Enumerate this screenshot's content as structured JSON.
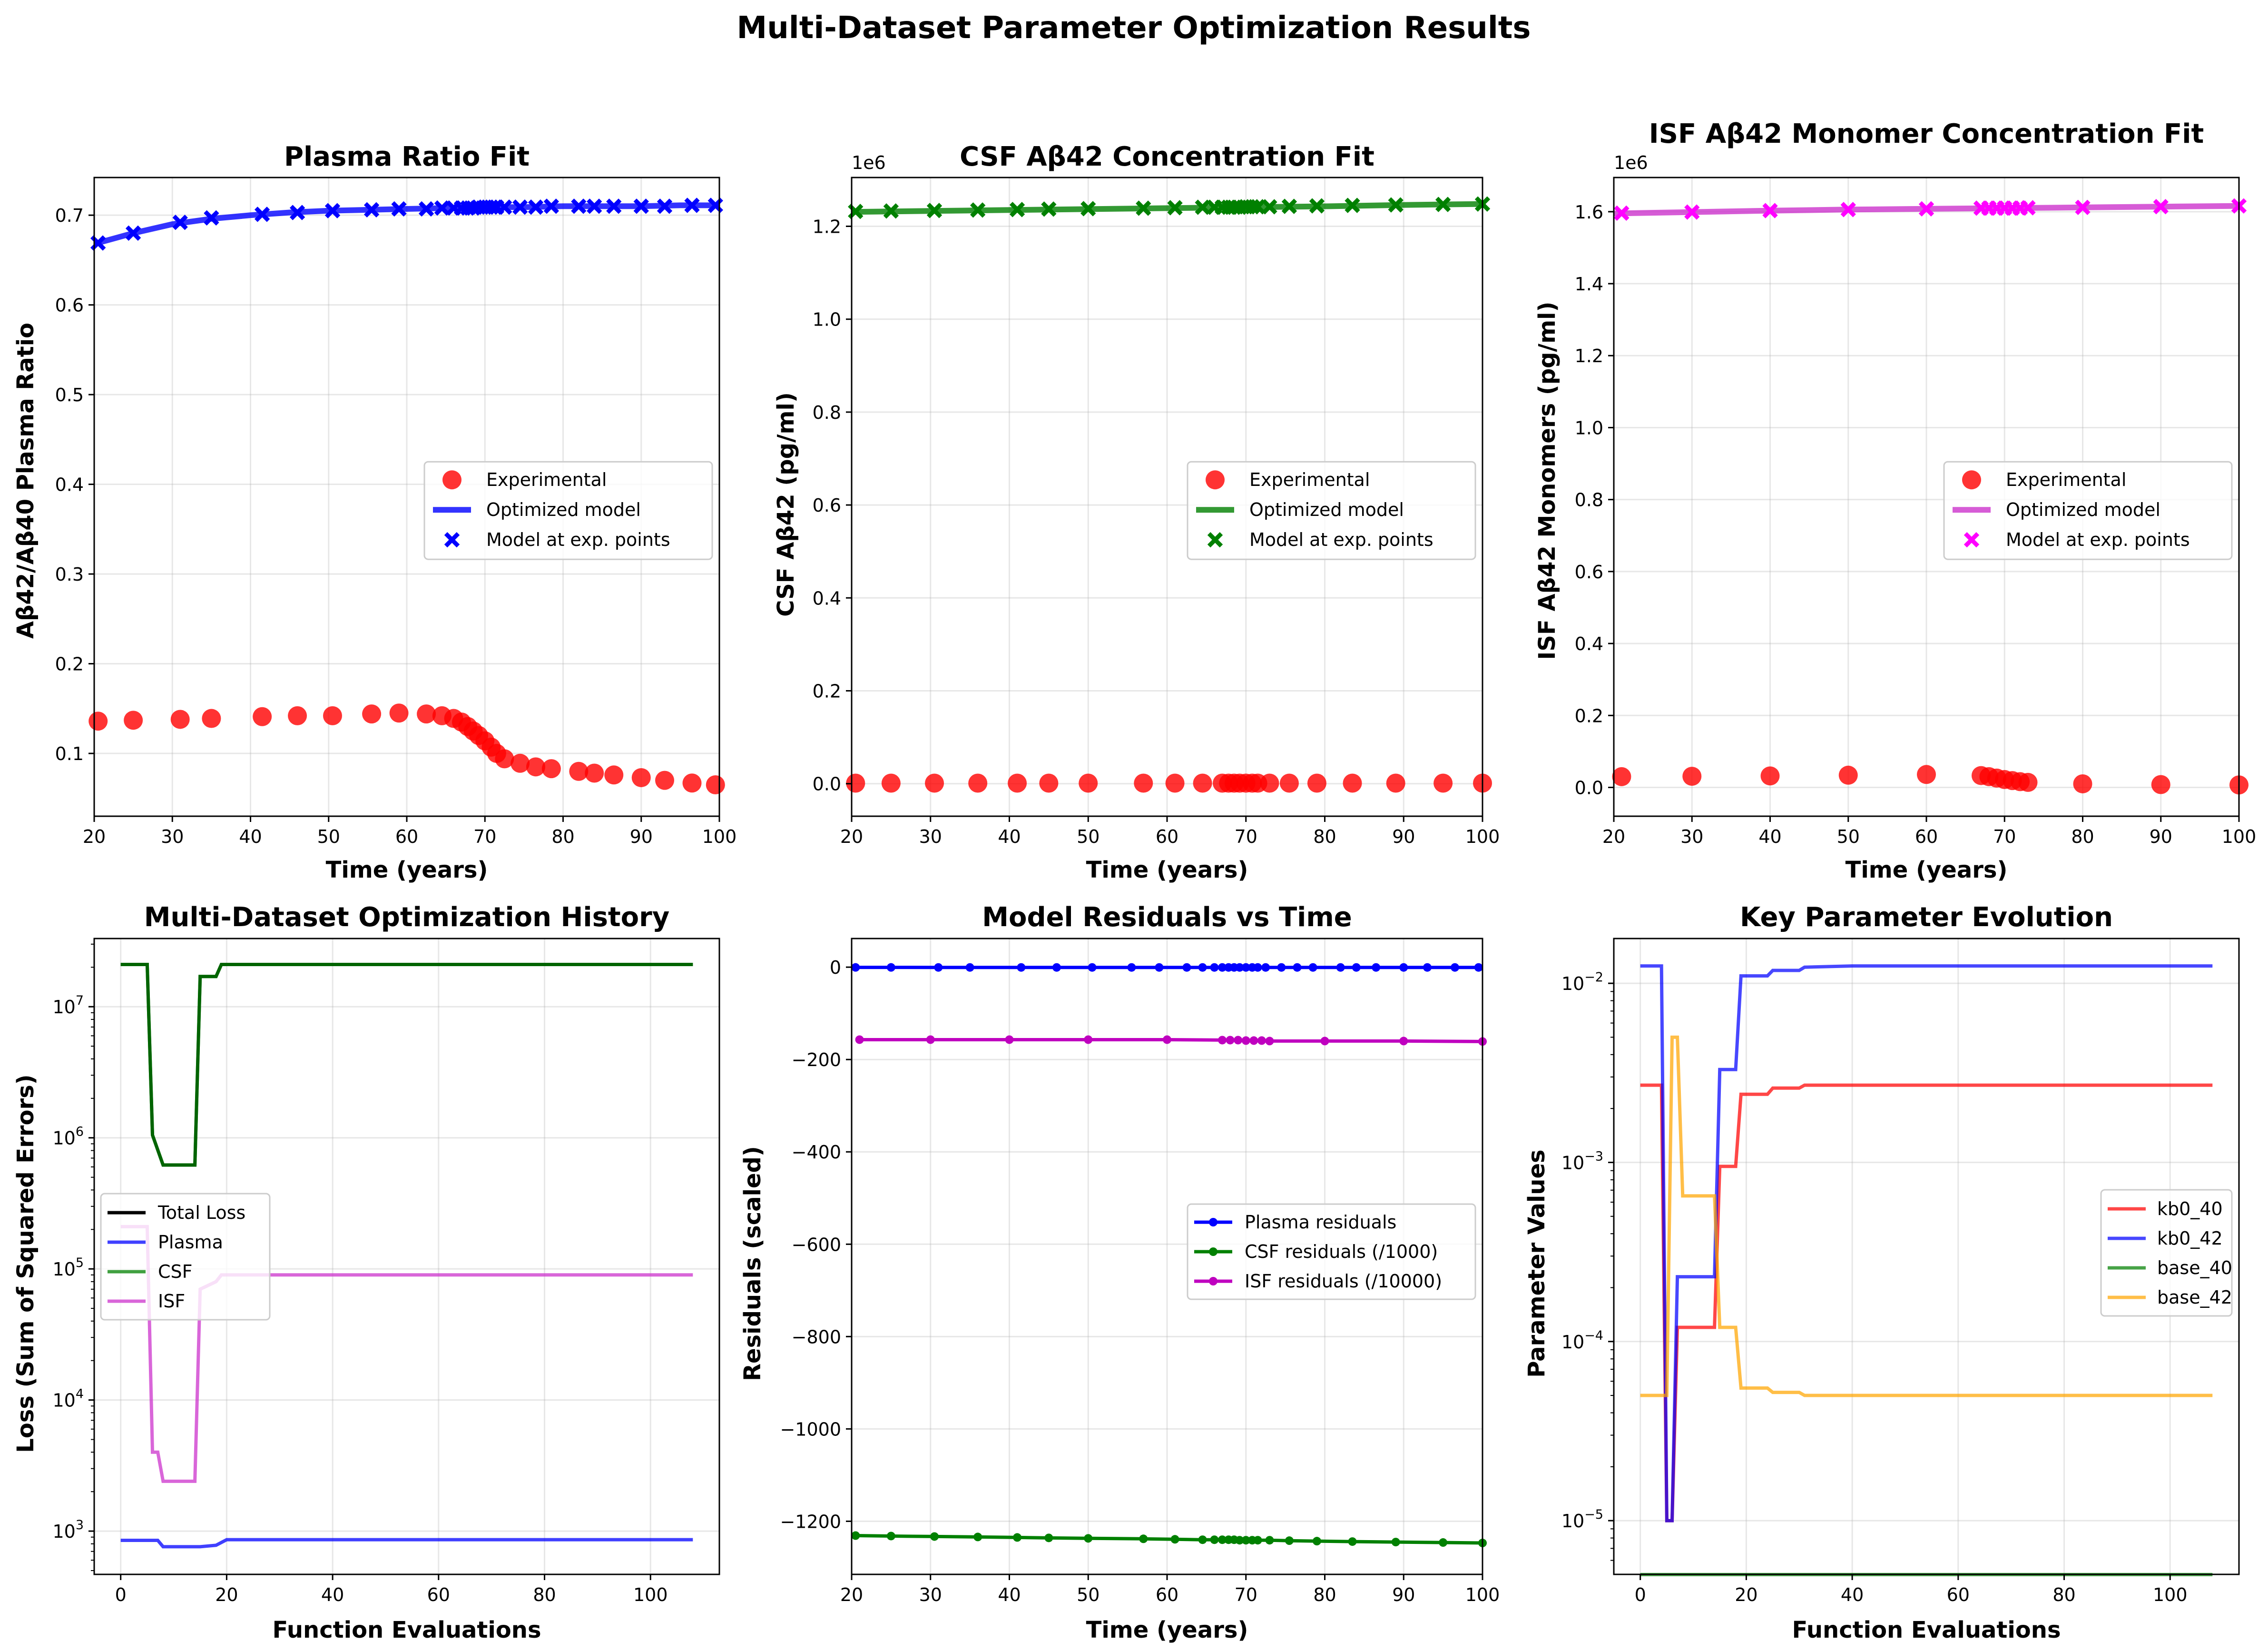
{
  "figure": {
    "title": "Multi-Dataset Parameter Optimization Results"
  },
  "colors": {
    "experimental": "#ff0000",
    "plasma": "#0000ff",
    "csf": "#008000",
    "isf": "#ff00ff",
    "isf_line": "#cc33cc",
    "total": "#000000",
    "total_overlay": "#006400",
    "isf_residual": "#bf00bf",
    "kb0_40": "#ff0000",
    "kb0_42": "#0000ff",
    "base_40": "#008000",
    "base_42": "#ffa500"
  },
  "chart_data": [
    {
      "id": "plasma",
      "type": "scatter",
      "title": "Plasma Ratio Fit",
      "xlabel": "Time (years)",
      "ylabel": "Aβ42/Aβ40 Plasma Ratio",
      "xlim": [
        20,
        100
      ],
      "ylim": [
        0.03,
        0.742
      ],
      "xticks": [
        20,
        30,
        40,
        50,
        60,
        70,
        80,
        90,
        100
      ],
      "yticks": [
        0.1,
        0.2,
        0.3,
        0.4,
        0.5,
        0.6,
        0.7
      ],
      "ytick_labels": [
        "0.1",
        "0.2",
        "0.3",
        "0.4",
        "0.5",
        "0.6",
        "0.7"
      ],
      "offset_text": "",
      "grid": true,
      "legend_position": "center-right",
      "legend": [
        "Experimental",
        "Optimized model",
        "Model at exp. points"
      ],
      "experimental": {
        "x": [
          20.5,
          25,
          31,
          35,
          41.5,
          46,
          50.5,
          55.5,
          59,
          62.5,
          64.5,
          66,
          67,
          67.8,
          68.5,
          69.2,
          70,
          70.8,
          71.5,
          72.5,
          74.5,
          76.5,
          78.5,
          82,
          84,
          86.5,
          90,
          93,
          96.5,
          99.5
        ],
        "y": [
          0.136,
          0.137,
          0.138,
          0.139,
          0.141,
          0.142,
          0.142,
          0.144,
          0.145,
          0.144,
          0.142,
          0.139,
          0.135,
          0.13,
          0.125,
          0.12,
          0.114,
          0.107,
          0.1,
          0.094,
          0.089,
          0.085,
          0.083,
          0.08,
          0.078,
          0.076,
          0.073,
          0.07,
          0.067,
          0.065
        ]
      },
      "model": {
        "x": [
          20,
          25,
          30,
          35,
          40,
          45,
          50,
          55,
          60,
          65,
          70,
          75,
          80,
          85,
          90,
          95,
          100
        ],
        "y": [
          0.668,
          0.68,
          0.69,
          0.696,
          0.7,
          0.703,
          0.705,
          0.706,
          0.707,
          0.708,
          0.709,
          0.709,
          0.71,
          0.71,
          0.71,
          0.711,
          0.711
        ]
      },
      "model_points": {
        "x": [
          20.5,
          25,
          31,
          35,
          41.5,
          46,
          50.5,
          55.5,
          59,
          62.5,
          64.5,
          66,
          67,
          67.8,
          68.5,
          69.2,
          70,
          70.8,
          71.5,
          72.5,
          74.5,
          76.5,
          78.5,
          82,
          84,
          86.5,
          90,
          93,
          96.5,
          99.5
        ],
        "y": [
          0.669,
          0.68,
          0.692,
          0.697,
          0.701,
          0.703,
          0.705,
          0.706,
          0.707,
          0.707,
          0.708,
          0.708,
          0.708,
          0.708,
          0.708,
          0.709,
          0.709,
          0.709,
          0.709,
          0.709,
          0.709,
          0.709,
          0.71,
          0.71,
          0.71,
          0.71,
          0.71,
          0.71,
          0.711,
          0.711
        ]
      }
    },
    {
      "id": "csf",
      "type": "scatter",
      "title": "CSF Aβ42 Concentration Fit",
      "xlabel": "Time (years)",
      "ylabel": "CSF Aβ42 (pg/ml)",
      "xlim": [
        20,
        100
      ],
      "ylim": [
        -0.07,
        1.305
      ],
      "xticks": [
        20,
        30,
        40,
        50,
        60,
        70,
        80,
        90,
        100
      ],
      "yticks": [
        0,
        0.2,
        0.4,
        0.6,
        0.8,
        1.0,
        1.2
      ],
      "ytick_labels": [
        "0.0",
        "0.2",
        "0.4",
        "0.6",
        "0.8",
        "1.0",
        "1.2"
      ],
      "offset_text": "1e6",
      "grid": true,
      "legend_position": "center-right",
      "legend": [
        "Experimental",
        "Optimized model",
        "Model at exp. points"
      ],
      "experimental": {
        "x": [
          20.5,
          25,
          30.5,
          36,
          41,
          45,
          50,
          57,
          61,
          64.5,
          67,
          67.8,
          68.5,
          69.2,
          70,
          70.8,
          71.5,
          73,
          75.5,
          79,
          83.5,
          89,
          95,
          100
        ],
        "y": [
          0.0012,
          0.0012,
          0.0012,
          0.0012,
          0.0012,
          0.0012,
          0.0012,
          0.0012,
          0.0012,
          0.0012,
          0.0012,
          0.0012,
          0.0012,
          0.0012,
          0.0012,
          0.0012,
          0.0012,
          0.0012,
          0.0012,
          0.0012,
          0.0012,
          0.0012,
          0.0012,
          0.0012
        ]
      },
      "model": {
        "x": [
          20,
          30,
          40,
          50,
          60,
          70,
          80,
          90,
          100
        ],
        "y": [
          1.231,
          1.233,
          1.235,
          1.237,
          1.239,
          1.241,
          1.243,
          1.246,
          1.248
        ]
      },
      "model_points": {
        "x": [
          20.5,
          25,
          30.5,
          36,
          41,
          45,
          50,
          57,
          61,
          64.5,
          66,
          67,
          67.8,
          68.5,
          69.2,
          70,
          70.8,
          71.5,
          73,
          75.5,
          79,
          83.5,
          89,
          95,
          100
        ],
        "y": [
          1.232,
          1.233,
          1.234,
          1.235,
          1.236,
          1.237,
          1.238,
          1.239,
          1.24,
          1.241,
          1.241,
          1.241,
          1.241,
          1.241,
          1.241,
          1.242,
          1.242,
          1.242,
          1.242,
          1.243,
          1.244,
          1.245,
          1.246,
          1.247,
          1.248
        ]
      }
    },
    {
      "id": "isf",
      "type": "scatter",
      "title": "ISF Aβ42 Monomer Concentration Fit",
      "xlabel": "Time (years)",
      "ylabel": "ISF Aβ42 Monomers (pg/ml)",
      "xlim": [
        20,
        100
      ],
      "ylim": [
        -0.08,
        1.695
      ],
      "xticks": [
        20,
        30,
        40,
        50,
        60,
        70,
        80,
        90,
        100
      ],
      "yticks": [
        0,
        0.2,
        0.4,
        0.6,
        0.8,
        1.0,
        1.2,
        1.4,
        1.6
      ],
      "ytick_labels": [
        "0.0",
        "0.2",
        "0.4",
        "0.6",
        "0.8",
        "1.0",
        "1.2",
        "1.4",
        "1.6"
      ],
      "offset_text": "1e6",
      "grid": true,
      "legend_position": "center-right",
      "legend": [
        "Experimental",
        "Optimized model",
        "Model at exp. points"
      ],
      "experimental": {
        "x": [
          21,
          30,
          40,
          50,
          60,
          67,
          68,
          69,
          70,
          71,
          72,
          73,
          80,
          90,
          100
        ],
        "y": [
          0.03,
          0.031,
          0.032,
          0.034,
          0.036,
          0.033,
          0.03,
          0.026,
          0.022,
          0.019,
          0.016,
          0.014,
          0.01,
          0.008,
          0.007
        ]
      },
      "model": {
        "x": [
          20,
          30,
          40,
          50,
          60,
          70,
          80,
          90,
          100
        ],
        "y": [
          1.595,
          1.599,
          1.603,
          1.606,
          1.608,
          1.61,
          1.612,
          1.614,
          1.616
        ]
      },
      "model_points": {
        "x": [
          21,
          30,
          40,
          50,
          60,
          67,
          68,
          69,
          70,
          71,
          72,
          73,
          80,
          90,
          100
        ],
        "y": [
          1.596,
          1.599,
          1.603,
          1.606,
          1.608,
          1.61,
          1.61,
          1.61,
          1.61,
          1.61,
          1.61,
          1.611,
          1.612,
          1.614,
          1.616
        ]
      }
    },
    {
      "id": "history",
      "type": "line",
      "title": "Multi-Dataset Optimization History",
      "xlabel": "Function Evaluations",
      "ylabel": "Loss (Sum of Squared Errors)",
      "yscale": "log",
      "xlim": [
        -5,
        113
      ],
      "ylim_log10": [
        2.67,
        7.52
      ],
      "xticks": [
        0,
        20,
        40,
        60,
        80,
        100
      ],
      "ytick_exponents": [
        3,
        4,
        5,
        6,
        7
      ],
      "grid": true,
      "legend_position": "center-left",
      "legend": [
        "Total Loss",
        "Plasma",
        "CSF",
        "ISF"
      ],
      "series": [
        {
          "name": "Plasma",
          "color_key": "plasma",
          "x": [
            0,
            7,
            8,
            15,
            18,
            20,
            108
          ],
          "y": [
            850,
            850,
            760,
            760,
            780,
            860,
            860
          ]
        },
        {
          "name": "ISF",
          "color_key": "isf_line",
          "x": [
            0,
            5,
            6,
            7,
            8,
            14,
            15,
            18,
            19,
            108
          ],
          "y": [
            210000,
            210000,
            4000,
            4000,
            2400,
            2400,
            70000,
            80000,
            90000,
            90000
          ]
        },
        {
          "name": "CSF",
          "color_key": "csf",
          "x": [
            0,
            5,
            6,
            8,
            14,
            15,
            18,
            19,
            30,
            108
          ],
          "y": [
            21000000,
            21000000,
            1050000,
            620000,
            620000,
            17000000,
            17000000,
            21000000,
            21000000,
            21000000
          ]
        },
        {
          "name": "Total Loss",
          "color_key": "total_overlay",
          "x": [
            0,
            5,
            6,
            8,
            14,
            15,
            18,
            19,
            30,
            108
          ],
          "y": [
            21000000,
            21000000,
            1050000,
            620000,
            620000,
            17000000,
            17000000,
            21000000,
            21000000,
            21000000
          ]
        }
      ]
    },
    {
      "id": "residuals",
      "type": "line",
      "title": "Model Residuals vs Time",
      "xlabel": "Time (years)",
      "ylabel": "Residuals (scaled)",
      "xlim": [
        20,
        100
      ],
      "ylim": [
        -1315,
        62
      ],
      "xticks": [
        20,
        30,
        40,
        50,
        60,
        70,
        80,
        90,
        100
      ],
      "yticks": [
        0,
        -200,
        -400,
        -600,
        -800,
        -1000,
        -1200
      ],
      "ytick_labels": [
        "0",
        "−200",
        "−400",
        "−600",
        "−800",
        "−1000",
        "−1200"
      ],
      "grid": true,
      "legend_position": "center-right",
      "legend": [
        "Plasma residuals",
        "CSF residuals (/1000)",
        "ISF residuals (/10000)"
      ],
      "series": [
        {
          "name": "Plasma residuals",
          "color_key": "plasma",
          "x": [
            20.5,
            25,
            31,
            35,
            41.5,
            46,
            50.5,
            55.5,
            59,
            62.5,
            64.5,
            66,
            67,
            67.8,
            68.5,
            69.2,
            70,
            70.8,
            71.5,
            72.5,
            74.5,
            76.5,
            78.5,
            82,
            84,
            86.5,
            90,
            93,
            96.5,
            99.5
          ],
          "y": [
            -0.5,
            -0.5,
            -0.6,
            -0.6,
            -0.6,
            -0.6,
            -0.6,
            -0.6,
            -0.6,
            -0.6,
            -0.6,
            -0.6,
            -0.6,
            -0.6,
            -0.6,
            -0.6,
            -0.6,
            -0.6,
            -0.6,
            -0.6,
            -0.6,
            -0.6,
            -0.6,
            -0.6,
            -0.6,
            -0.6,
            -0.6,
            -0.6,
            -0.6,
            -0.6
          ]
        },
        {
          "name": "CSF residuals (/1000)",
          "color_key": "csf",
          "x": [
            20.5,
            25,
            30.5,
            36,
            41,
            45,
            50,
            57,
            61,
            64.5,
            66,
            67,
            67.8,
            68.5,
            69.2,
            70,
            70.8,
            71.5,
            73,
            75.5,
            79,
            83.5,
            89,
            95,
            100
          ],
          "y": [
            -1231,
            -1232,
            -1233,
            -1234,
            -1235,
            -1236,
            -1237,
            -1238,
            -1239,
            -1240,
            -1240,
            -1240,
            -1240,
            -1240,
            -1241,
            -1241,
            -1241,
            -1241,
            -1241,
            -1242,
            -1243,
            -1244,
            -1245,
            -1246,
            -1247
          ]
        },
        {
          "name": "ISF residuals (/10000)",
          "color_key": "isf_residual",
          "x": [
            21,
            30,
            40,
            50,
            60,
            67,
            68,
            69,
            70,
            71,
            72,
            73,
            80,
            90,
            100
          ],
          "y": [
            -157,
            -157,
            -157,
            -157,
            -157,
            -158,
            -158,
            -158,
            -159,
            -159,
            -159,
            -160,
            -160,
            -160,
            -161
          ]
        }
      ]
    },
    {
      "id": "params",
      "type": "line",
      "title": "Key Parameter Evolution",
      "xlabel": "Function Evaluations",
      "ylabel": "Parameter Values",
      "yscale": "log",
      "xlim": [
        -5,
        113
      ],
      "ylim_log10": [
        -5.3,
        -1.75
      ],
      "xticks": [
        0,
        20,
        40,
        60,
        80,
        100
      ],
      "ytick_exponents": [
        -5,
        -4,
        -3,
        -2
      ],
      "grid": true,
      "legend_position": "center-right",
      "legend": [
        "kb0_40",
        "kb0_42",
        "base_40",
        "base_42"
      ],
      "series": [
        {
          "name": "kb0_40",
          "color_key": "kb0_40",
          "x": [
            0,
            4,
            5,
            6,
            7,
            14,
            15,
            18,
            19,
            24,
            25,
            30,
            31,
            40,
            108
          ],
          "y": [
            0.0027,
            0.0027,
            1e-05,
            1e-05,
            0.00012,
            0.00012,
            0.00095,
            0.00095,
            0.0024,
            0.0024,
            0.0026,
            0.0026,
            0.0027,
            0.0027,
            0.0027
          ]
        },
        {
          "name": "kb0_42",
          "color_key": "kb0_42",
          "x": [
            0,
            4,
            5,
            6,
            7,
            14,
            15,
            18,
            19,
            24,
            25,
            30,
            31,
            40,
            108
          ],
          "y": [
            0.0125,
            0.0125,
            1e-05,
            1e-05,
            0.00023,
            0.00023,
            0.0033,
            0.0033,
            0.011,
            0.011,
            0.0118,
            0.0118,
            0.0123,
            0.0125,
            0.0125
          ]
        },
        {
          "name": "base_40",
          "color_key": "base_40",
          "x": [
            0,
            108
          ],
          "y": [
            5e-06,
            5e-06
          ]
        },
        {
          "name": "base_42",
          "color_key": "base_42",
          "x": [
            0,
            5,
            6,
            7,
            8,
            14,
            15,
            18,
            19,
            24,
            25,
            30,
            31,
            40,
            108
          ],
          "y": [
            5e-05,
            5e-05,
            0.005,
            0.005,
            0.00065,
            0.00065,
            0.00012,
            0.00012,
            5.5e-05,
            5.5e-05,
            5.2e-05,
            5.2e-05,
            5e-05,
            5e-05,
            5e-05
          ]
        }
      ]
    }
  ]
}
